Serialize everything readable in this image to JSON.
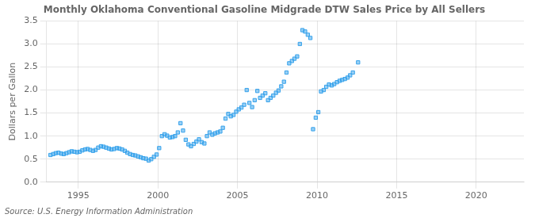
{
  "chart_data": {
    "type": "scatter",
    "title": "Monthly Oklahoma Conventional Gasoline Midgrade DTW Sales Price by All Sellers",
    "ylabel": "Dollars per Gallon",
    "annotations": [
      "Source: U.S. Energy Information Administration"
    ],
    "marker": "square",
    "grid": true,
    "xlim": [
      1993.0,
      2023.0
    ],
    "ylim": [
      0.0,
      3.5
    ],
    "xticks": [
      1995,
      2000,
      2005,
      2010,
      2015,
      2020
    ],
    "yticks": [
      {
        "value": 0.0,
        "label": "0.0"
      },
      {
        "value": 0.5,
        "label": "0.5"
      },
      {
        "value": 1.0,
        "label": "1.0"
      },
      {
        "value": 1.5,
        "label": "1.5"
      },
      {
        "value": 2.0,
        "label": "2.0"
      },
      {
        "value": 2.5,
        "label": "2.5"
      },
      {
        "value": 3.0,
        "label": "3.0"
      },
      {
        "value": 3.5,
        "label": "3.5"
      }
    ],
    "x": [
      1993.25,
      1993.42,
      1993.58,
      1993.75,
      1993.92,
      1994.08,
      1994.25,
      1994.42,
      1994.58,
      1994.75,
      1994.92,
      1995.08,
      1995.25,
      1995.42,
      1995.58,
      1995.75,
      1995.92,
      1996.08,
      1996.25,
      1996.42,
      1996.58,
      1996.75,
      1996.92,
      1997.08,
      1997.25,
      1997.42,
      1997.58,
      1997.75,
      1997.92,
      1998.08,
      1998.25,
      1998.42,
      1998.58,
      1998.75,
      1998.92,
      1999.08,
      1999.25,
      1999.42,
      1999.58,
      1999.75,
      1999.92,
      2000.08,
      2000.25,
      2000.42,
      2000.58,
      2000.75,
      2000.92,
      2001.08,
      2001.25,
      2001.42,
      2001.58,
      2001.75,
      2001.92,
      2002.08,
      2002.25,
      2002.42,
      2002.58,
      2002.75,
      2002.92,
      2003.08,
      2003.25,
      2003.42,
      2003.58,
      2003.75,
      2003.92,
      2004.08,
      2004.25,
      2004.42,
      2004.58,
      2004.75,
      2004.92,
      2005.08,
      2005.25,
      2005.42,
      2005.58,
      2005.75,
      2005.92,
      2006.08,
      2006.25,
      2006.42,
      2006.58,
      2006.75,
      2006.92,
      2007.08,
      2007.25,
      2007.42,
      2007.58,
      2007.75,
      2007.92,
      2008.08,
      2008.25,
      2008.42,
      2008.58,
      2008.75,
      2008.92,
      2009.08,
      2009.25,
      2009.42,
      2009.58,
      2009.75,
      2009.92,
      2010.08,
      2010.25,
      2010.42,
      2010.58,
      2010.75,
      2010.92,
      2011.08,
      2011.25,
      2011.42,
      2011.58,
      2011.75,
      2011.92,
      2012.08,
      2012.25,
      2012.58
    ],
    "values": [
      0.59,
      0.61,
      0.63,
      0.64,
      0.62,
      0.61,
      0.63,
      0.65,
      0.67,
      0.66,
      0.65,
      0.66,
      0.69,
      0.71,
      0.72,
      0.7,
      0.68,
      0.7,
      0.75,
      0.78,
      0.77,
      0.75,
      0.73,
      0.71,
      0.72,
      0.74,
      0.73,
      0.71,
      0.68,
      0.64,
      0.61,
      0.59,
      0.58,
      0.56,
      0.54,
      0.52,
      0.51,
      0.47,
      0.5,
      0.55,
      0.6,
      0.74,
      1.0,
      1.04,
      1.01,
      0.97,
      0.98,
      1.0,
      1.08,
      1.28,
      1.12,
      0.92,
      0.82,
      0.78,
      0.83,
      0.88,
      0.93,
      0.87,
      0.84,
      1.0,
      1.08,
      1.03,
      1.06,
      1.08,
      1.1,
      1.18,
      1.38,
      1.48,
      1.43,
      1.46,
      1.53,
      1.58,
      1.62,
      1.68,
      2.0,
      1.72,
      1.63,
      1.78,
      1.98,
      1.83,
      1.88,
      1.93,
      1.78,
      1.83,
      1.88,
      1.94,
      1.99,
      2.08,
      2.18,
      2.38,
      2.58,
      2.63,
      2.68,
      2.73,
      3.0,
      3.3,
      3.27,
      3.2,
      3.13,
      1.15,
      1.4,
      1.52,
      1.97,
      2.0,
      2.07,
      2.12,
      2.1,
      2.13,
      2.17,
      2.2,
      2.22,
      2.24,
      2.27,
      2.32,
      2.38,
      2.6
    ]
  }
}
